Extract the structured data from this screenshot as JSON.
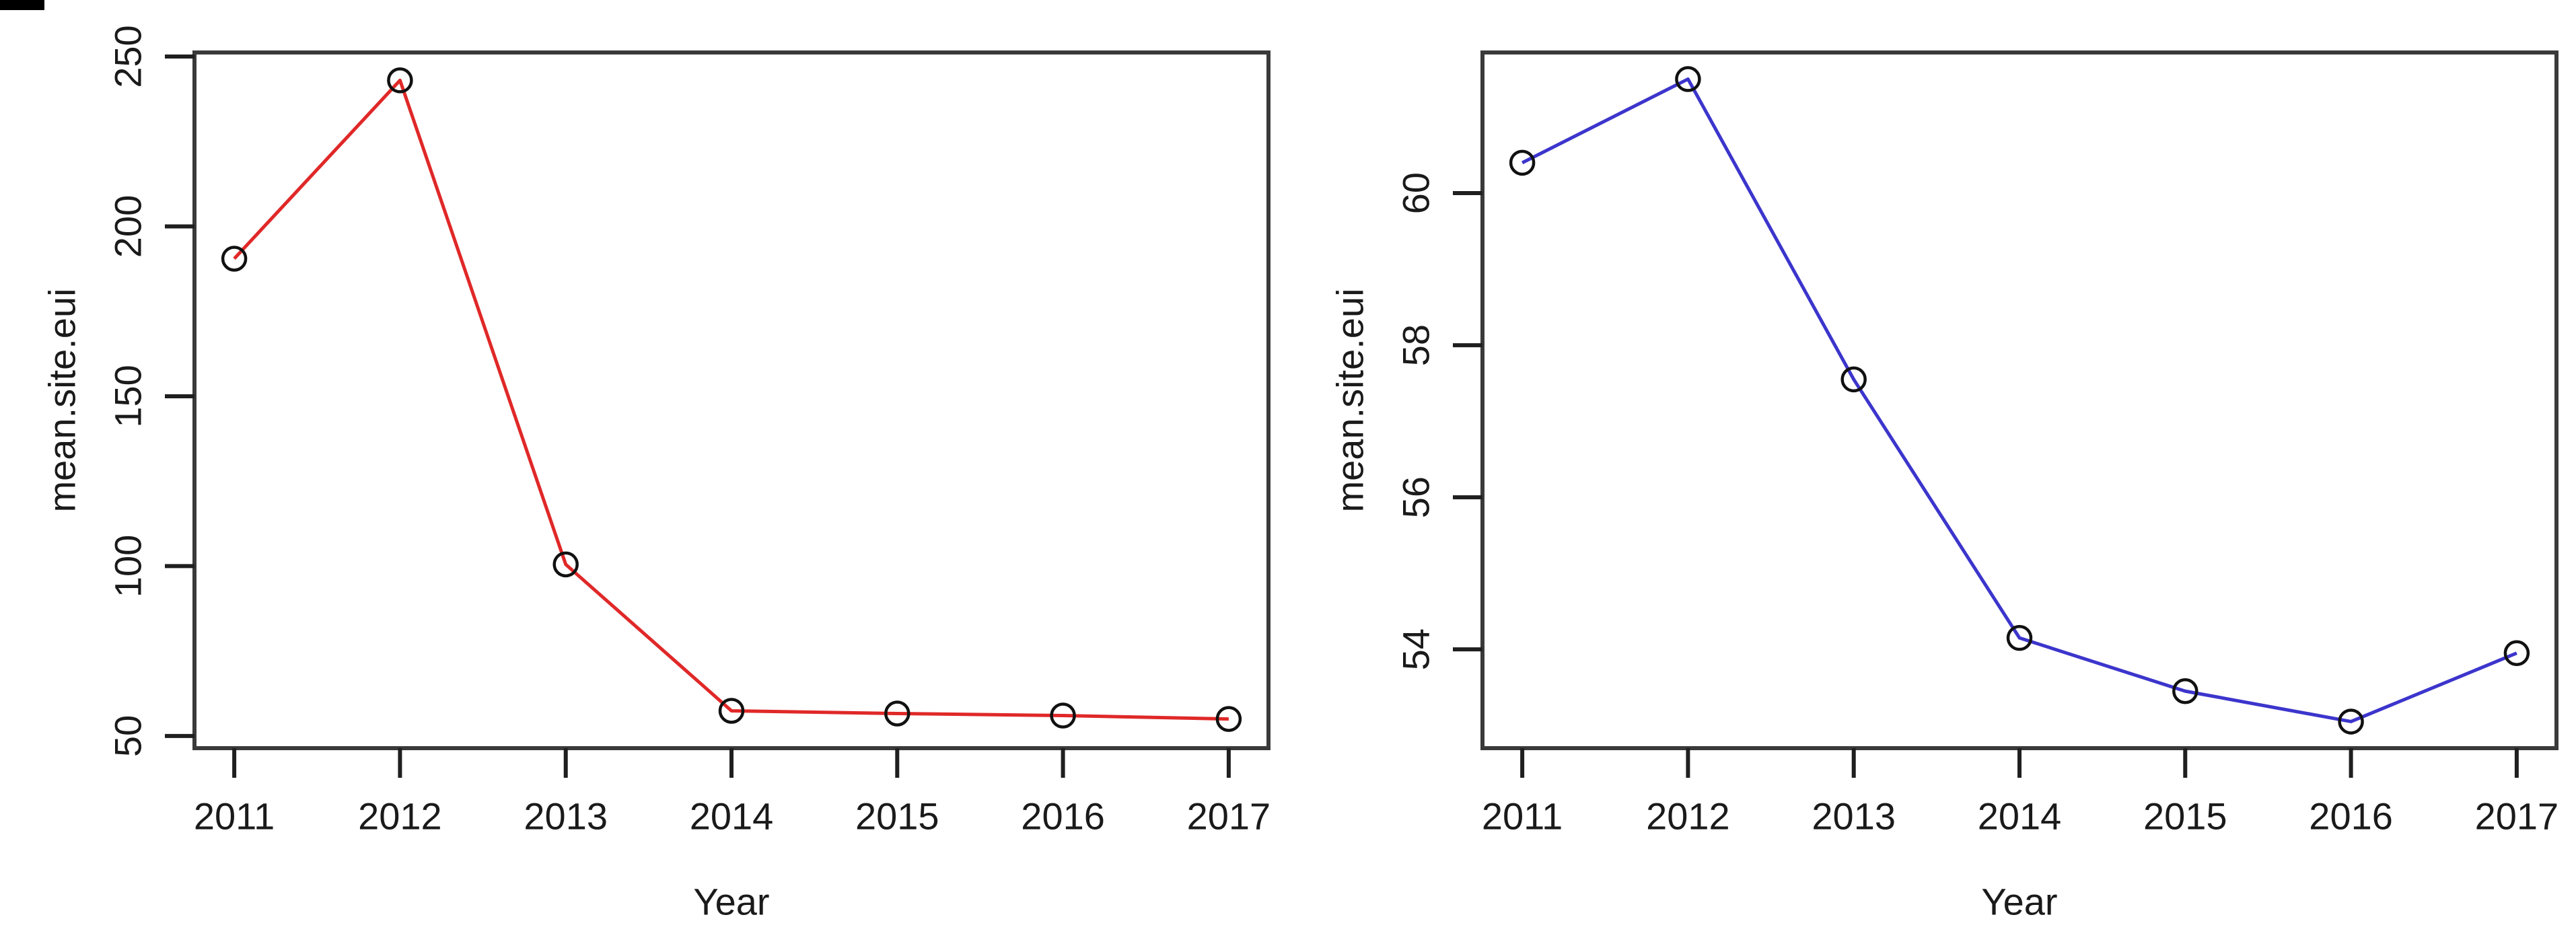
{
  "page": {
    "background": "#ffffff",
    "description_visible_text_only": true
  },
  "chart_data": [
    {
      "panel": "left",
      "type": "line",
      "title": "",
      "xlabel": "Year",
      "ylabel": "mean.site.eui",
      "line_color": "#e02828",
      "marker": "open-circle",
      "marker_color": "#111111",
      "x": [
        2011,
        2012,
        2013,
        2014,
        2015,
        2016,
        2017
      ],
      "values": [
        190.5,
        243,
        100.5,
        57.4,
        56.6,
        56.0,
        55.0
      ],
      "x_ticks": [
        2011,
        2012,
        2013,
        2014,
        2015,
        2016,
        2017
      ],
      "y_ticks": [
        50,
        100,
        150,
        200,
        250
      ],
      "xlim": [
        2010.76,
        2017.24
      ],
      "ylim": [
        46.4,
        251.2
      ],
      "grid": false,
      "legend": "none"
    },
    {
      "panel": "right",
      "type": "line",
      "title": "",
      "xlabel": "Year",
      "ylabel": "mean.site.eui",
      "line_color": "#3c35cc",
      "marker": "open-circle",
      "marker_color": "#111111",
      "x": [
        2011,
        2012,
        2013,
        2014,
        2015,
        2016,
        2017
      ],
      "values": [
        60.4,
        61.5,
        57.55,
        54.15,
        53.45,
        53.05,
        53.95
      ],
      "x_ticks": [
        2011,
        2012,
        2013,
        2014,
        2015,
        2016,
        2017
      ],
      "y_ticks": [
        54,
        56,
        58,
        60
      ],
      "xlim": [
        2010.76,
        2017.24
      ],
      "ylim": [
        52.7,
        61.85
      ],
      "grid": false,
      "legend": "none"
    }
  ]
}
